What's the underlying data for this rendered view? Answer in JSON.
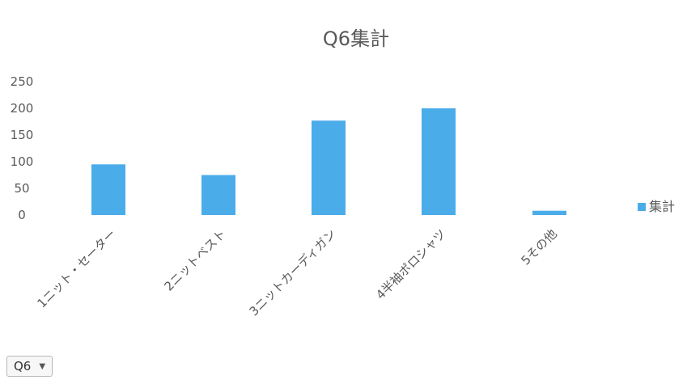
{
  "chart_data": {
    "type": "bar",
    "title": "Q6集計",
    "categories": [
      "1ニット・セーター",
      "2ニットベスト",
      "3ニットカーディガン",
      "4半袖ポロシャツ",
      "5その他"
    ],
    "series": [
      {
        "name": "集計",
        "values": [
          95,
          75,
          177,
          200,
          8
        ],
        "color": "#4bacea"
      }
    ],
    "yticks": [
      "0",
      "50",
      "100",
      "150",
      "200",
      "250"
    ],
    "ylim": [
      0,
      250
    ],
    "legend_position": "right",
    "grid": false
  },
  "field_button": {
    "label": "Q6",
    "icon": "dropdown-arrow-icon"
  }
}
